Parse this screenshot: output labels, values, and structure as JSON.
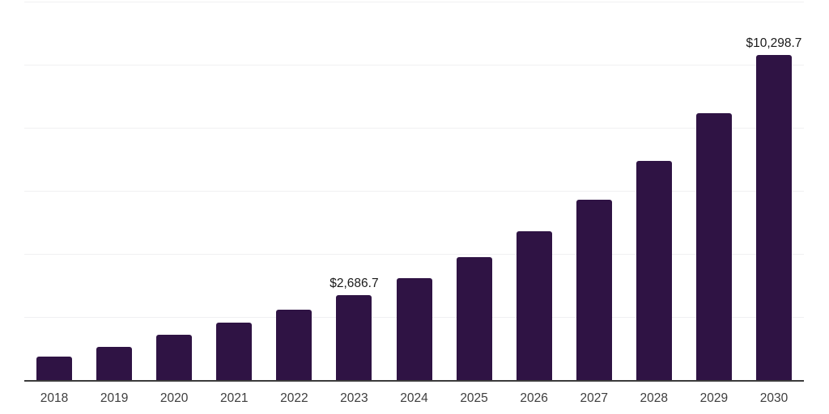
{
  "chart_data": {
    "type": "bar",
    "categories": [
      "2018",
      "2019",
      "2020",
      "2021",
      "2022",
      "2023",
      "2024",
      "2025",
      "2026",
      "2027",
      "2028",
      "2029",
      "2030"
    ],
    "values": [
      740,
      1050,
      1435,
      1820,
      2230,
      2686.7,
      3230,
      3895,
      4715,
      5715,
      6945,
      8455,
      10298.7
    ],
    "annotations": [
      {
        "category": "2023",
        "text": "$2,686.7"
      },
      {
        "category": "2030",
        "text": "$10,298.7"
      }
    ],
    "title": "",
    "xlabel": "",
    "ylabel": "",
    "ylim": [
      0,
      12000
    ],
    "gridline_step": 2000,
    "grid": true,
    "legend": "none",
    "bar_color": "#2f1344",
    "gridline_color": "#f0f0f2",
    "axis_line_color": "#3b3b3b",
    "tick_label_color": "#3d3d3d",
    "value_label_color": "#1a1a1a"
  }
}
